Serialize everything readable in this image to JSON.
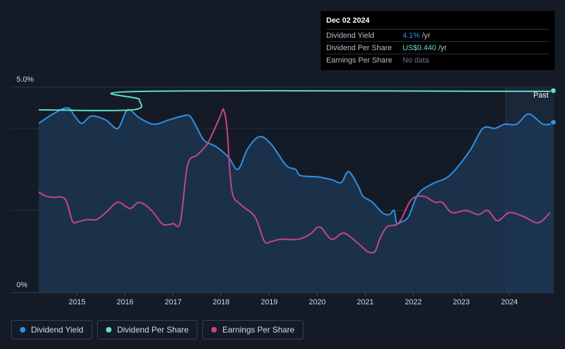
{
  "tooltip": {
    "date": "Dec 02 2024",
    "rows": [
      {
        "label": "Dividend Yield",
        "value": "4.1%",
        "unit": "/yr"
      },
      {
        "label": "Dividend Per Share",
        "value": "US$0.440",
        "unit": "/yr"
      },
      {
        "label": "Earnings Per Share",
        "value": "No data",
        "unit": ""
      }
    ]
  },
  "past_label": "Past",
  "legend": [
    {
      "label": "Dividend Yield",
      "color": "#2e93e8"
    },
    {
      "label": "Dividend Per Share",
      "color": "#5fe0c8"
    },
    {
      "label": "Earnings Per Share",
      "color": "#c9458a"
    }
  ],
  "chart_data": {
    "type": "line",
    "ylim": [
      0,
      5.0
    ],
    "yticks": [
      "5.0%",
      "0%"
    ],
    "xticks": [
      "2015",
      "2016",
      "2017",
      "2018",
      "2019",
      "2020",
      "2021",
      "2022",
      "2023",
      "2024"
    ],
    "xlim": [
      2014.2,
      2024.92
    ],
    "grid": true,
    "legend_position": "bottom-left",
    "series": [
      {
        "name": "Dividend Yield",
        "color": "#2e93e8",
        "area": true,
        "x": [
          2014.2,
          2014.5,
          2014.8,
          2014.95,
          2015.1,
          2015.3,
          2015.6,
          2015.85,
          2016.05,
          2016.3,
          2016.6,
          2016.9,
          2017.2,
          2017.35,
          2017.5,
          2017.65,
          2017.9,
          2018.15,
          2018.35,
          2018.55,
          2018.8,
          2019.05,
          2019.35,
          2019.55,
          2019.65,
          2020.0,
          2020.3,
          2020.5,
          2020.65,
          2020.85,
          2020.95,
          2021.15,
          2021.35,
          2021.5,
          2021.6,
          2021.65,
          2021.75,
          2021.9,
          2022.1,
          2022.4,
          2022.7,
          2022.95,
          2023.2,
          2023.45,
          2023.7,
          2023.9,
          2024.15,
          2024.4,
          2024.7,
          2024.92
        ],
        "y": [
          4.12,
          4.35,
          4.5,
          4.3,
          4.12,
          4.3,
          4.2,
          4.0,
          4.45,
          4.25,
          4.1,
          4.2,
          4.3,
          4.3,
          4.0,
          3.7,
          3.55,
          3.3,
          3.0,
          3.5,
          3.8,
          3.6,
          3.1,
          3.0,
          2.85,
          2.82,
          2.75,
          2.68,
          2.95,
          2.6,
          2.35,
          2.2,
          1.95,
          1.9,
          2.0,
          1.7,
          1.72,
          1.85,
          2.4,
          2.65,
          2.8,
          3.1,
          3.5,
          4.0,
          4.0,
          4.1,
          4.1,
          4.35,
          4.1,
          4.12
        ]
      },
      {
        "name": "Dividend Per Share",
        "color": "#5fe0c8",
        "area": false,
        "x": [
          2014.2,
          2016.15,
          2016.3,
          2016.35,
          2024.92
        ],
        "y": [
          4.45,
          4.45,
          4.7,
          4.9,
          4.9
        ]
      },
      {
        "name": "Earnings Per Share",
        "color": "#c9458a",
        "area": false,
        "x": [
          2014.2,
          2014.35,
          2014.5,
          2014.75,
          2014.9,
          2015.0,
          2015.2,
          2015.4,
          2015.6,
          2015.85,
          2016.1,
          2016.3,
          2016.55,
          2016.75,
          2016.85,
          2017.0,
          2017.15,
          2017.3,
          2017.5,
          2017.7,
          2017.85,
          2018.0,
          2018.05,
          2018.12,
          2018.22,
          2018.4,
          2018.7,
          2018.9,
          2019.05,
          2019.25,
          2019.6,
          2019.85,
          2020.05,
          2020.3,
          2020.55,
          2020.85,
          2021.05,
          2021.2,
          2021.3,
          2021.45,
          2021.7,
          2021.95,
          2022.2,
          2022.45,
          2022.6,
          2022.8,
          2023.1,
          2023.35,
          2023.55,
          2023.75,
          2024.0,
          2024.3,
          2024.6,
          2024.85
        ],
        "y": [
          2.45,
          2.35,
          2.32,
          2.28,
          1.75,
          1.72,
          1.78,
          1.78,
          1.95,
          2.2,
          2.05,
          2.2,
          2.0,
          1.7,
          1.65,
          1.68,
          1.72,
          3.1,
          3.35,
          3.6,
          3.95,
          4.35,
          4.45,
          4.0,
          2.5,
          2.15,
          1.85,
          1.25,
          1.25,
          1.3,
          1.3,
          1.42,
          1.6,
          1.3,
          1.45,
          1.2,
          1.0,
          1.0,
          1.3,
          1.6,
          1.7,
          2.25,
          2.35,
          2.2,
          2.2,
          1.95,
          2.0,
          1.9,
          2.0,
          1.75,
          1.95,
          1.85,
          1.7,
          1.95
        ]
      }
    ]
  }
}
